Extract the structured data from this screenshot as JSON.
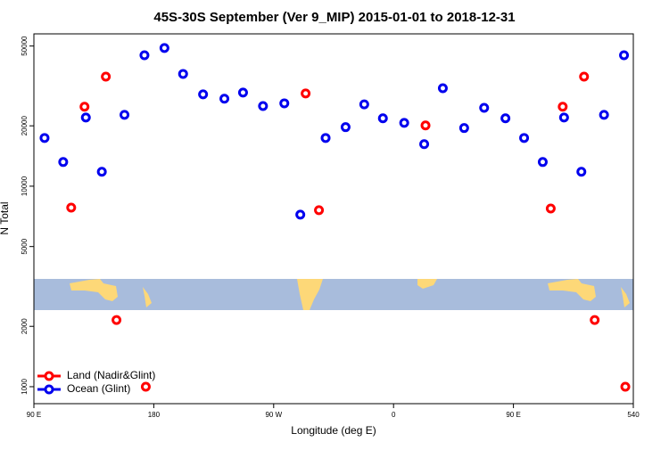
{
  "chart_data": {
    "type": "scatter",
    "title": "45S-30S September (Ver 9_MIP)   2015-01-01 to 2018-12-31",
    "x_label": "Longitude (deg E)",
    "y_label": "N Total",
    "xlim": [
      90,
      540
    ],
    "xticks": [
      {
        "value": 90,
        "label": "90 E"
      },
      180,
      {
        "value": 270,
        "label": "90 W"
      },
      {
        "value": 360,
        "label": "0"
      },
      {
        "value": 450,
        "label": "90 E"
      },
      540
    ],
    "ylim": [
      823,
      57500
    ],
    "yscale": "log",
    "yticks": [
      1000,
      2000,
      5000,
      10000,
      20000,
      50000
    ],
    "legend": "bottom-left",
    "series": [
      {
        "name": "Land (Nadir&Glint)",
        "color": "#ff0000",
        "x": [
          118,
          128,
          144,
          152,
          174,
          294,
          304,
          384,
          478,
          487,
          503,
          511,
          534
        ],
        "values": [
          7820,
          24900,
          35200,
          2150,
          1000,
          29000,
          7590,
          20100,
          7740,
          24900,
          35200,
          2150,
          1000
        ]
      },
      {
        "name": "Ocean (Glint)",
        "color": "#0000ee",
        "x": [
          98,
          112,
          129,
          141,
          158,
          173,
          188,
          202,
          217,
          233,
          247,
          262,
          278,
          290,
          309,
          324,
          338,
          352,
          368,
          383,
          397,
          413,
          428,
          444,
          458,
          472,
          488,
          501,
          518,
          533
        ],
        "values": [
          17400,
          13200,
          22000,
          11800,
          22700,
          45000,
          48900,
          36300,
          28700,
          27300,
          29300,
          25100,
          25900,
          7210,
          17400,
          19700,
          25600,
          21800,
          20700,
          16200,
          30800,
          19500,
          24600,
          21800,
          17400,
          13200,
          22000,
          11800,
          22700,
          45000
        ]
      }
    ]
  }
}
